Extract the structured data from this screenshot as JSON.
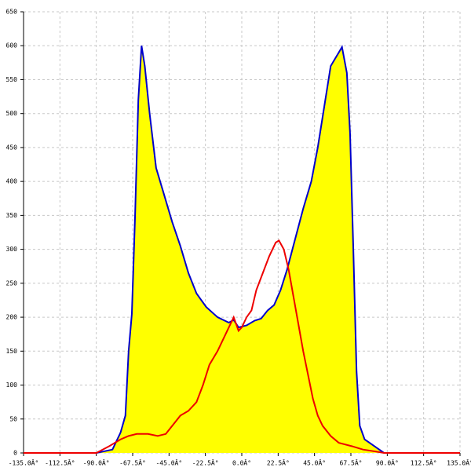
{
  "chart_data": {
    "type": "area",
    "series": [
      {
        "type": "area",
        "color": "#0000cc",
        "fill": "#ffff00",
        "x": [
          -90,
          -80,
          -75,
          -72,
          -70,
          -68,
          -66,
          -64,
          -62,
          -60,
          -57,
          -53,
          -48,
          -43,
          -38,
          -33,
          -28,
          -22,
          -15,
          -8,
          -5,
          -2,
          3,
          8,
          12,
          16,
          20,
          24,
          28,
          33,
          38,
          43,
          47,
          51,
          55,
          62,
          65,
          67,
          69,
          71,
          73,
          76,
          82,
          88
        ],
        "values": [
          0,
          5,
          30,
          55,
          150,
          205,
          350,
          520,
          600,
          570,
          500,
          420,
          380,
          340,
          305,
          265,
          235,
          215,
          200,
          192,
          196,
          185,
          188,
          195,
          198,
          210,
          218,
          240,
          270,
          315,
          360,
          400,
          450,
          510,
          570,
          598,
          560,
          470,
          300,
          120,
          40,
          20,
          10,
          0
        ]
      },
      {
        "type": "line",
        "color": "#ee0000",
        "x": [
          -135,
          -90,
          -82,
          -75,
          -70,
          -65,
          -58,
          -52,
          -47,
          -43,
          -38,
          -33,
          -28,
          -24,
          -20,
          -15,
          -10,
          -5,
          -2,
          0,
          3,
          6,
          9,
          13,
          17,
          21,
          23,
          26,
          29,
          32,
          35,
          38,
          41,
          44,
          47,
          50,
          55,
          60,
          68,
          75,
          83,
          88,
          135
        ],
        "values": [
          0,
          0,
          10,
          20,
          25,
          28,
          28,
          25,
          28,
          40,
          55,
          62,
          75,
          100,
          130,
          150,
          175,
          200,
          180,
          185,
          200,
          210,
          240,
          265,
          290,
          310,
          313,
          300,
          270,
          230,
          190,
          150,
          115,
          80,
          55,
          40,
          25,
          15,
          10,
          5,
          2,
          0,
          0
        ]
      }
    ],
    "xlim": [
      -135,
      135
    ],
    "xticks": [
      {
        "value": -135,
        "label": "-135.0Â°"
      },
      {
        "value": -112.5,
        "label": "-112.5Â°"
      },
      {
        "value": -90,
        "label": "-90.0Â°"
      },
      {
        "value": -67.5,
        "label": "-67.5Â°"
      },
      {
        "value": -45,
        "label": "-45.0Â°"
      },
      {
        "value": -22.5,
        "label": "-22.5Â°"
      },
      {
        "value": 0,
        "label": "0.0Â°"
      },
      {
        "value": 22.5,
        "label": "22.5Â°"
      },
      {
        "value": 45,
        "label": "45.0Â°"
      },
      {
        "value": 67.5,
        "label": "67.5Â°"
      },
      {
        "value": 90,
        "label": "90.0Â°"
      },
      {
        "value": 112.5,
        "label": "112.5Â°"
      },
      {
        "value": 135,
        "label": "135.0Â°"
      }
    ],
    "ylim": [
      0,
      650
    ],
    "yticks": [
      0,
      50,
      100,
      150,
      200,
      250,
      300,
      350,
      400,
      450,
      500,
      550,
      600,
      650
    ],
    "grid": true
  }
}
